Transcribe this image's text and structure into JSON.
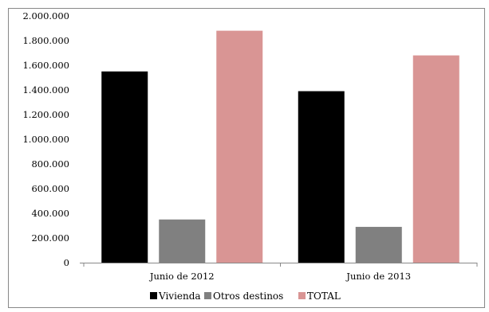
{
  "chart_data": {
    "type": "bar",
    "title": "",
    "xlabel": "",
    "ylabel": "",
    "categories": [
      "Junio de 2012",
      "Junio de 2013"
    ],
    "series": [
      {
        "name": "Vivienda",
        "values": [
          1550000,
          1390000
        ],
        "color": "#000000"
      },
      {
        "name": "Otros destinos",
        "values": [
          350000,
          290000
        ],
        "color": "#808080"
      },
      {
        "name": "TOTAL",
        "values": [
          1880000,
          1680000
        ],
        "color": "#d99594"
      }
    ],
    "ylim": [
      0,
      2000000
    ],
    "yticks": [
      "0",
      "200.000",
      "400.000",
      "600.000",
      "800.000",
      "1.000.000",
      "1.200.000",
      "1.400.000",
      "1.600.000",
      "1.800.000",
      "2.000.000"
    ],
    "grid": false,
    "legend_position": "bottom"
  }
}
